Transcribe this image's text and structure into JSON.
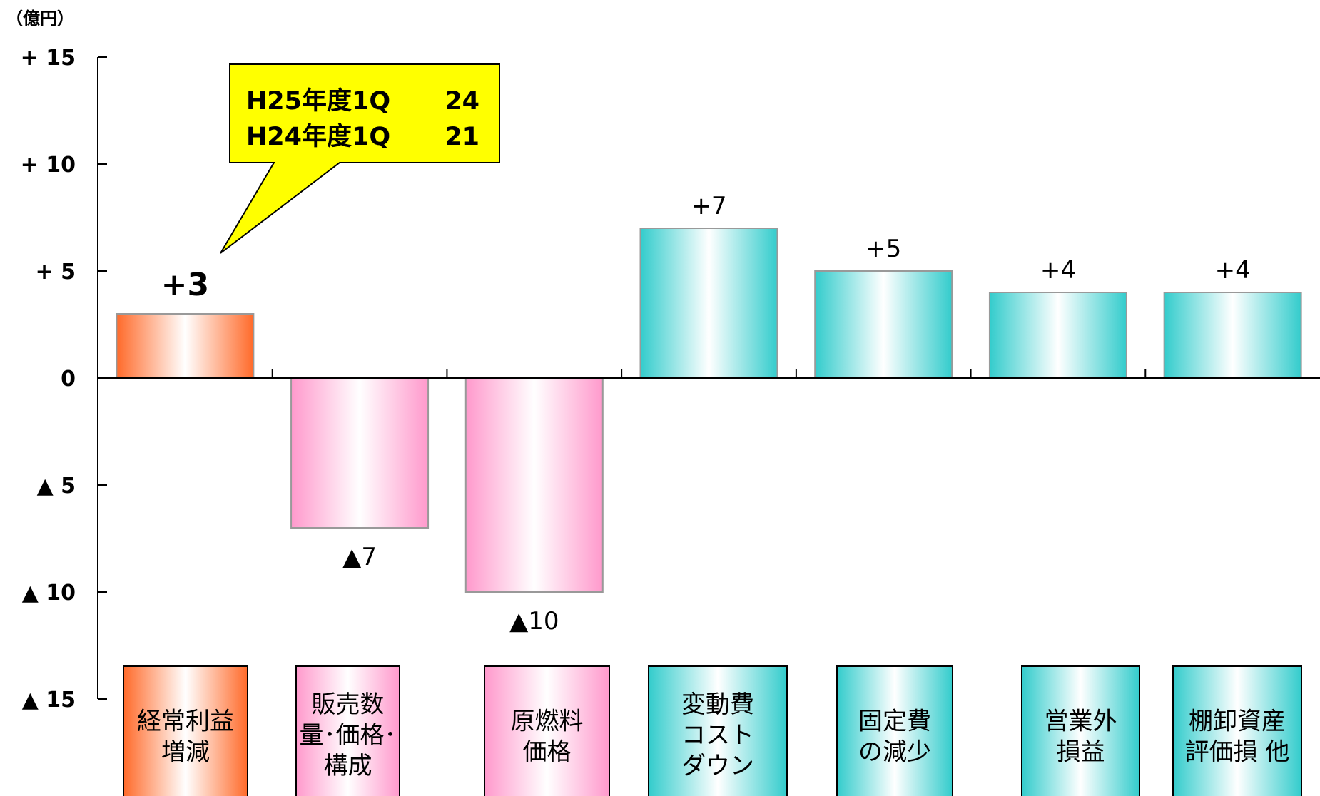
{
  "chart_data": {
    "type": "bar",
    "unit_label": "（億円）",
    "ylim": [
      -15,
      15
    ],
    "yticks": [
      {
        "value": 15,
        "label": "+ 15"
      },
      {
        "value": 10,
        "label": "+ 10"
      },
      {
        "value": 5,
        "label": "+ 5"
      },
      {
        "value": 0,
        "label": "0"
      },
      {
        "value": -5,
        "label": "▲ 5"
      },
      {
        "value": -10,
        "label": "▲ 10"
      },
      {
        "value": -15,
        "label": "▲ 15"
      }
    ],
    "categories": [
      {
        "lines": [
          "経常利益",
          "増減"
        ],
        "kind": "total"
      },
      {
        "lines": [
          "販売数",
          "量･価格･",
          "構成"
        ],
        "kind": "negative"
      },
      {
        "lines": [
          "原燃料",
          "価格"
        ],
        "kind": "negative"
      },
      {
        "lines": [
          "変動費",
          "コスト",
          "ダウン"
        ],
        "kind": "positive"
      },
      {
        "lines": [
          "固定費",
          "の減少"
        ],
        "kind": "positive"
      },
      {
        "lines": [
          "営業外",
          "損益"
        ],
        "kind": "positive"
      },
      {
        "lines": [
          "棚卸資産",
          "評価損 他"
        ],
        "kind": "positive"
      }
    ],
    "values": [
      3,
      -7,
      -10,
      7,
      5,
      4,
      4
    ],
    "data_labels": [
      "+3",
      "▲7",
      "▲10",
      "+7",
      "+5",
      "+4",
      "+4"
    ],
    "callout": {
      "lines": [
        {
          "label": "H25年度1Q",
          "value": "24"
        },
        {
          "label": "H24年度1Q",
          "value": "21"
        }
      ]
    },
    "colors": {
      "total": "#ff6a2a",
      "negative": "#ff99cc",
      "positive": "#33cccc",
      "callout_fill": "#ffff00"
    }
  }
}
